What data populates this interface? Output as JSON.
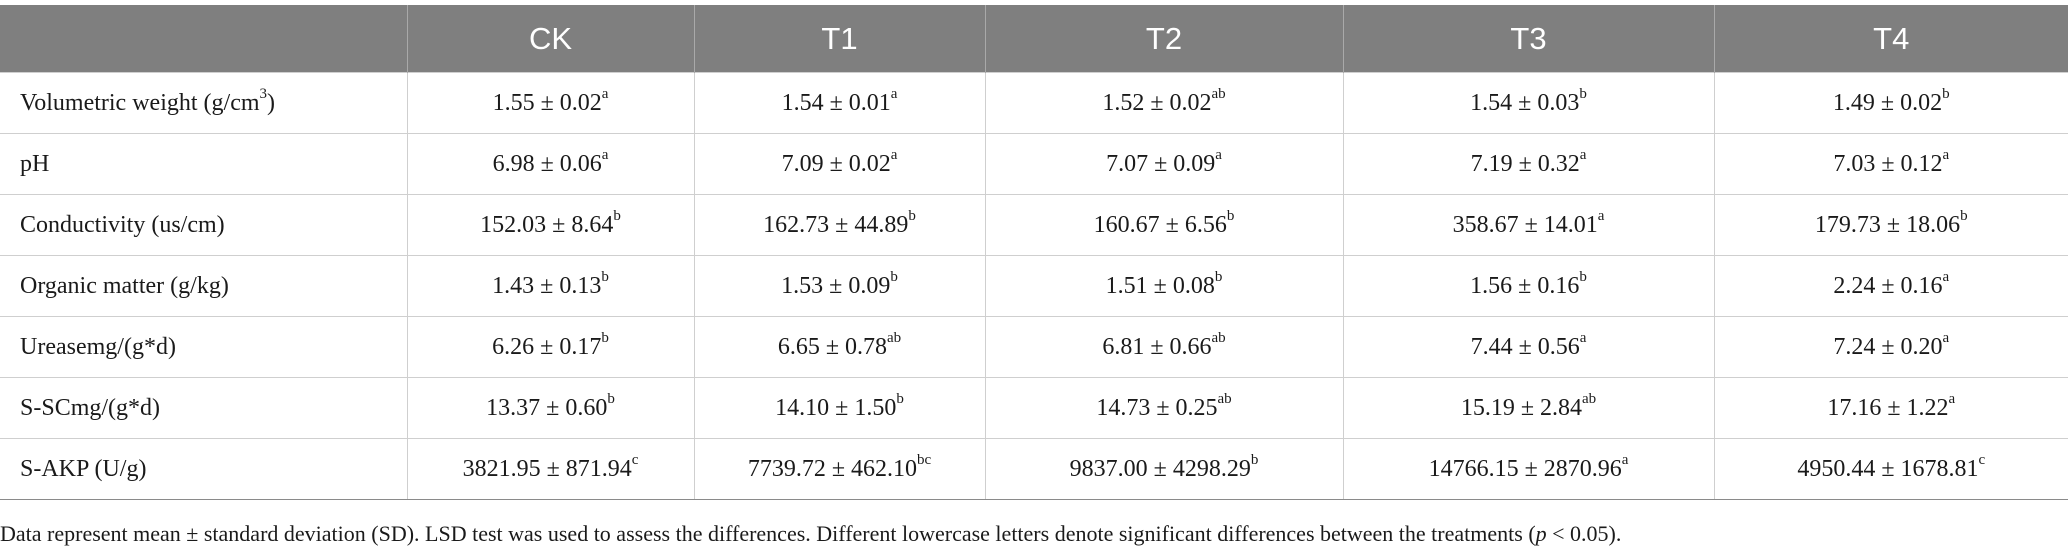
{
  "table": {
    "headers": [
      "",
      "CK",
      "T1",
      "T2",
      "T3",
      "T4"
    ],
    "rows": [
      {
        "label": "Volumetric weight (g/cm",
        "label_sup": "3",
        "label_suffix": ")",
        "cells": [
          {
            "value": "1.55 ± 0.02",
            "sup": "a"
          },
          {
            "value": "1.54 ± 0.01",
            "sup": "a"
          },
          {
            "value": "1.52 ± 0.02",
            "sup": "ab"
          },
          {
            "value": "1.54 ± 0.03",
            "sup": "b"
          },
          {
            "value": "1.49 ± 0.02",
            "sup": "b"
          }
        ]
      },
      {
        "label": "pH",
        "label_sup": "",
        "label_suffix": "",
        "cells": [
          {
            "value": "6.98 ± 0.06",
            "sup": "a"
          },
          {
            "value": "7.09 ± 0.02",
            "sup": "a"
          },
          {
            "value": "7.07 ± 0.09",
            "sup": "a"
          },
          {
            "value": "7.19 ± 0.32",
            "sup": "a"
          },
          {
            "value": "7.03 ± 0.12",
            "sup": "a"
          }
        ]
      },
      {
        "label": "Conductivity (us/cm)",
        "label_sup": "",
        "label_suffix": "",
        "cells": [
          {
            "value": "152.03 ± 8.64",
            "sup": "b"
          },
          {
            "value": "162.73 ± 44.89",
            "sup": "b"
          },
          {
            "value": "160.67 ± 6.56",
            "sup": "b"
          },
          {
            "value": "358.67 ± 14.01",
            "sup": "a"
          },
          {
            "value": "179.73 ± 18.06",
            "sup": "b"
          }
        ]
      },
      {
        "label": "Organic matter (g/kg)",
        "label_sup": "",
        "label_suffix": "",
        "cells": [
          {
            "value": "1.43 ± 0.13",
            "sup": "b"
          },
          {
            "value": "1.53 ± 0.09",
            "sup": "b"
          },
          {
            "value": "1.51 ± 0.08",
            "sup": "b"
          },
          {
            "value": "1.56 ± 0.16",
            "sup": "b"
          },
          {
            "value": "2.24 ± 0.16",
            "sup": "a"
          }
        ]
      },
      {
        "label": "Ureasemg/(g*d)",
        "label_sup": "",
        "label_suffix": "",
        "cells": [
          {
            "value": "6.26 ± 0.17",
            "sup": "b"
          },
          {
            "value": "6.65 ± 0.78",
            "sup": "ab"
          },
          {
            "value": "6.81 ± 0.66",
            "sup": "ab"
          },
          {
            "value": "7.44 ± 0.56",
            "sup": "a"
          },
          {
            "value": "7.24 ± 0.20",
            "sup": "a"
          }
        ]
      },
      {
        "label": "S-SCmg/(g*d)",
        "label_sup": "",
        "label_suffix": "",
        "cells": [
          {
            "value": "13.37 ± 0.60",
            "sup": "b"
          },
          {
            "value": "14.10 ± 1.50",
            "sup": "b"
          },
          {
            "value": "14.73 ± 0.25",
            "sup": "ab"
          },
          {
            "value": "15.19 ± 2.84",
            "sup": "ab"
          },
          {
            "value": "17.16 ± 1.22",
            "sup": "a"
          }
        ]
      },
      {
        "label": "S-AKP (U/g)",
        "label_sup": "",
        "label_suffix": "",
        "cells": [
          {
            "value": "3821.95 ± 871.94",
            "sup": "c"
          },
          {
            "value": "7739.72 ± 462.10",
            "sup": "bc"
          },
          {
            "value": "9837.00 ± 4298.29",
            "sup": "b"
          },
          {
            "value": "14766.15 ± 2870.96",
            "sup": "a"
          },
          {
            "value": "4950.44 ± 1678.81",
            "sup": "c"
          }
        ]
      }
    ]
  },
  "footnote": {
    "text": "Data represent mean ± standard deviation (SD). LSD test was used to assess the differences. Different lowercase letters denote significant differences between the treatments (",
    "italic": "p",
    "suffix": " < 0.05)."
  },
  "colors": {
    "header_bg": "#7f7f7f",
    "header_text": "#ffffff",
    "grid": "#cfcfcf"
  }
}
